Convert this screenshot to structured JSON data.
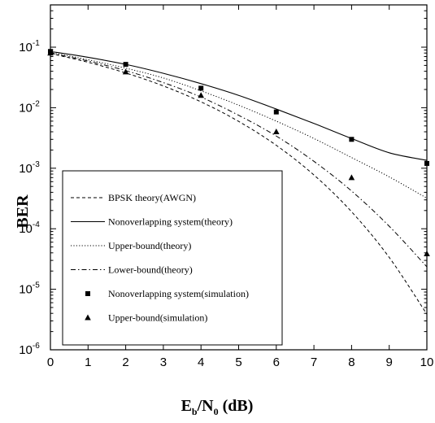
{
  "chart_data": {
    "type": "line",
    "title": "",
    "xlabel": {
      "main": "E",
      "sub1": "b",
      "mid": "/N",
      "sub2": "0",
      "tail": " (dB)"
    },
    "ylabel": "BER",
    "xlim": [
      0,
      10
    ],
    "ylim": [
      1e-06,
      0.5
    ],
    "y_scale": "log",
    "x_ticks": [
      "0",
      "1",
      "2",
      "3",
      "4",
      "5",
      "6",
      "7",
      "8",
      "9",
      "10"
    ],
    "y_ticks": [
      {
        "value": 0.1,
        "base": "10",
        "exp": "-1"
      },
      {
        "value": 0.01,
        "base": "10",
        "exp": "-2"
      },
      {
        "value": 0.001,
        "base": "10",
        "exp": "-3"
      },
      {
        "value": 0.0001,
        "base": "10",
        "exp": "-4"
      },
      {
        "value": 1e-05,
        "base": "10",
        "exp": "-5"
      },
      {
        "value": 1e-06,
        "base": "10",
        "exp": "-6"
      }
    ],
    "x": [
      0,
      1,
      2,
      3,
      4,
      5,
      6,
      7,
      8,
      9,
      10
    ],
    "series": [
      {
        "name": "BPSK theory(AWGN)",
        "style": "dashed",
        "values": [
          0.0786,
          0.0563,
          0.0375,
          0.0229,
          0.0125,
          0.00595,
          0.00239,
          0.000773,
          0.000191,
          3.36e-05,
          3.87e-06
        ]
      },
      {
        "name": "Nonoverlapping system(theory)",
        "style": "solid",
        "values": [
          0.085,
          0.068,
          0.052,
          0.037,
          0.025,
          0.016,
          0.0095,
          0.0055,
          0.0031,
          0.0018,
          0.00135
        ]
      },
      {
        "name": "Upper-bound(theory)",
        "style": "dotted",
        "values": [
          0.082,
          0.062,
          0.045,
          0.031,
          0.019,
          0.011,
          0.006,
          0.0031,
          0.0015,
          0.00072,
          0.00032
        ]
      },
      {
        "name": "Lower-bound(theory)",
        "style": "dashdot",
        "values": [
          0.08,
          0.059,
          0.041,
          0.026,
          0.015,
          0.0075,
          0.0034,
          0.0013,
          0.00042,
          0.00011,
          2.35e-05
        ]
      }
    ],
    "markers": [
      {
        "name": "Nonoverlapping system(simulation)",
        "shape": "square",
        "x": [
          0,
          2,
          4,
          6,
          8,
          10
        ],
        "y": [
          0.085,
          0.052,
          0.021,
          0.0085,
          0.003,
          0.0012
        ]
      },
      {
        "name": "Upper-bound(simulation)",
        "shape": "triangle",
        "x": [
          0,
          2,
          4,
          6,
          8,
          10
        ],
        "y": [
          0.08,
          0.039,
          0.016,
          0.004,
          0.0007,
          3.85e-05
        ]
      }
    ],
    "legend_placement": "lower-left inside",
    "grid": false
  }
}
